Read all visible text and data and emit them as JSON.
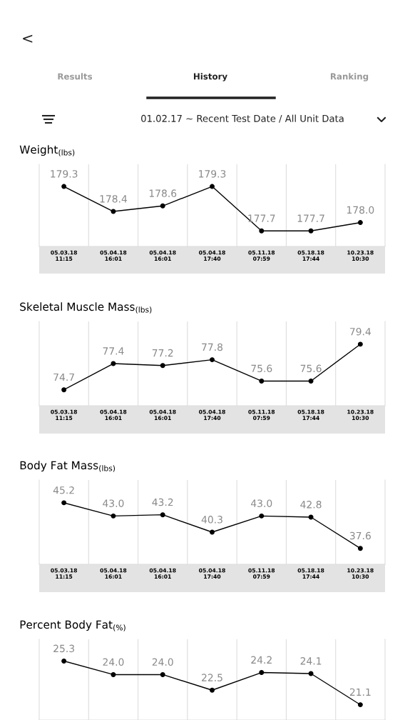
{
  "chart_data": [
    {
      "type": "line",
      "title": "Weight$_{(lbs)}$",
      "categories": [
        "05.03.18\n11:15",
        "05.04.18\n16:01",
        "05.04.18\n16:01",
        "05.04.18\n17:40",
        "05.11.18\n07:59",
        "05.18.18\n17:44",
        "10.23.18\n10:30"
      ],
      "values": [
        179.3,
        178.4,
        178.6,
        179.3,
        177.7,
        177.7,
        178.0
      ],
      "value_labels": [
        "179.3",
        "178.4",
        "178.6",
        "179.3",
        "177.7",
        "177.7",
        "178.0"
      ],
      "color": "#000000",
      "marker": "circle",
      "grid": "x",
      "annotations": [
        "<",
        "Results",
        "History",
        "Ranking",
        "01.02.17 ~ Recent Test Date / All Unit Data"
      ]
    },
    {
      "type": "line",
      "title": "Skeletal Muscle Mass$_{(lbs)}$",
      "categories": [
        "05.03.18\n11:15",
        "05.04.18\n16:01",
        "05.04.18\n16:01",
        "05.04.18\n17:40",
        "05.11.18\n07:59",
        "05.18.18\n17:44",
        "10.23.18\n10:30"
      ],
      "values": [
        74.7,
        77.4,
        77.2,
        77.8,
        75.6,
        75.6,
        79.4
      ],
      "value_labels": [
        "74.7",
        "77.4",
        "77.2",
        "77.8",
        "75.6",
        "75.6",
        "79.4"
      ],
      "color": "#000000",
      "marker": "circle",
      "grid": "x"
    },
    {
      "type": "line",
      "title": "Body Fat Mass$_{(lbs)}$",
      "categories": [
        "05.03.18\n11:15",
        "05.04.18\n16:01",
        "05.04.18\n16:01",
        "05.04.18\n17:40",
        "05.11.18\n07:59",
        "05.18.18\n17:44",
        "10.23.18\n10:30"
      ],
      "values": [
        45.2,
        43.0,
        43.2,
        40.3,
        43.0,
        42.8,
        37.6
      ],
      "value_labels": [
        "45.2",
        "43.0",
        "43.2",
        "40.3",
        "43.0",
        "42.8",
        "37.6"
      ],
      "color": "#000000",
      "marker": "circle",
      "grid": "x"
    },
    {
      "type": "line",
      "title": "Percent Body Fat$_{(%)}$",
      "categories": [
        null,
        null,
        null,
        null,
        null,
        null,
        null
      ],
      "values": [
        25.3,
        24.0,
        24.0,
        22.5,
        24.2,
        24.1,
        21.1
      ],
      "value_labels": [
        "25.3",
        "24.0",
        "24.0",
        "22.5",
        "24.2",
        "24.1",
        "21.1"
      ],
      "color": "#000000",
      "marker": "circle",
      "grid": "x"
    }
  ]
}
